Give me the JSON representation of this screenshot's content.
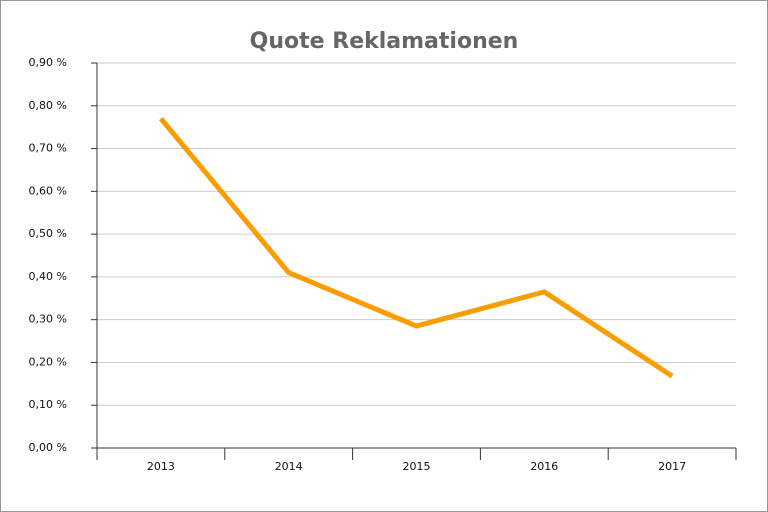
{
  "chart_data": {
    "type": "line",
    "title": "Quote Reklamationen",
    "categories": [
      "2013",
      "2014",
      "2015",
      "2016",
      "2017"
    ],
    "values": [
      0.77,
      0.41,
      0.285,
      0.365,
      0.168
    ],
    "color": "#f99d00",
    "ylim": [
      0,
      0.9
    ],
    "yticks": [
      {
        "value": 0,
        "label": "0,00 %"
      },
      {
        "value": 0.1,
        "label": "0,10 %"
      },
      {
        "value": 0.2,
        "label": "0,20 %"
      },
      {
        "value": 0.3,
        "label": "0,30 %"
      },
      {
        "value": 0.4,
        "label": "0,40 %"
      },
      {
        "value": 0.5,
        "label": "0,50 %"
      },
      {
        "value": 0.6,
        "label": "0,60 %"
      },
      {
        "value": 0.7,
        "label": "0,70 %"
      },
      {
        "value": 0.8,
        "label": "0,80 %"
      },
      {
        "value": 0.9,
        "label": "0,90 %"
      }
    ],
    "grid": true
  }
}
